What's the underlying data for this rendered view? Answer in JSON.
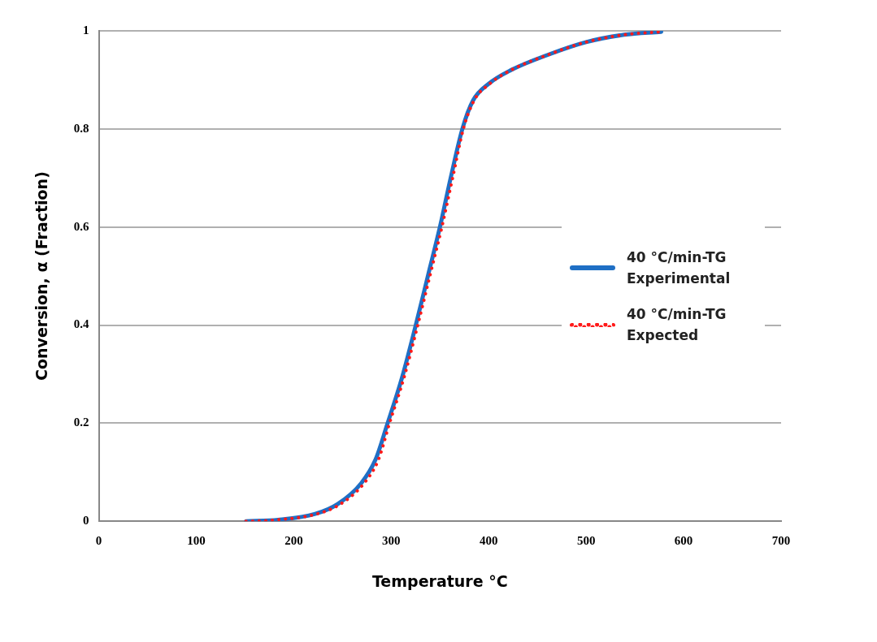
{
  "chart_data": {
    "type": "line",
    "xlabel": "Temperature °C",
    "ylabel": "Conversion, α (Fraction)",
    "xlim": [
      0,
      700
    ],
    "xticks": [
      0,
      100,
      200,
      300,
      400,
      500,
      600,
      700
    ],
    "ylim": [
      0,
      1
    ],
    "yticks": [
      0,
      0.2,
      0.4,
      0.6,
      0.8,
      1
    ],
    "grid": "y",
    "legend": "right",
    "marker": "none",
    "series": [
      {
        "name": "40 °C/min-TG Experimental",
        "color": "#1f6fc5",
        "line_style": "solid",
        "x": [
          151,
          184,
          222,
          245,
          269,
          284,
          296,
          311,
          325,
          338,
          350,
          361,
          373,
          384,
          400,
          423,
          462,
          500,
          539,
          577
        ],
        "values": [
          0,
          0.003,
          0.015,
          0.035,
          0.077,
          0.126,
          0.198,
          0.292,
          0.398,
          0.503,
          0.6,
          0.7,
          0.8,
          0.858,
          0.892,
          0.92,
          0.952,
          0.977,
          0.992,
          0.998
        ]
      },
      {
        "name": "40 °C/min-TG Expected",
        "color": "#ff1a1a",
        "line_style": "dotted",
        "x": [
          151,
          184,
          224,
          248,
          272,
          287,
          298,
          313,
          327,
          340,
          352,
          363,
          374,
          385,
          401,
          423,
          462,
          500,
          539,
          577
        ],
        "values": [
          0,
          0.003,
          0.015,
          0.035,
          0.077,
          0.126,
          0.198,
          0.292,
          0.398,
          0.503,
          0.6,
          0.7,
          0.8,
          0.858,
          0.892,
          0.92,
          0.952,
          0.977,
          0.992,
          0.998
        ]
      }
    ]
  }
}
